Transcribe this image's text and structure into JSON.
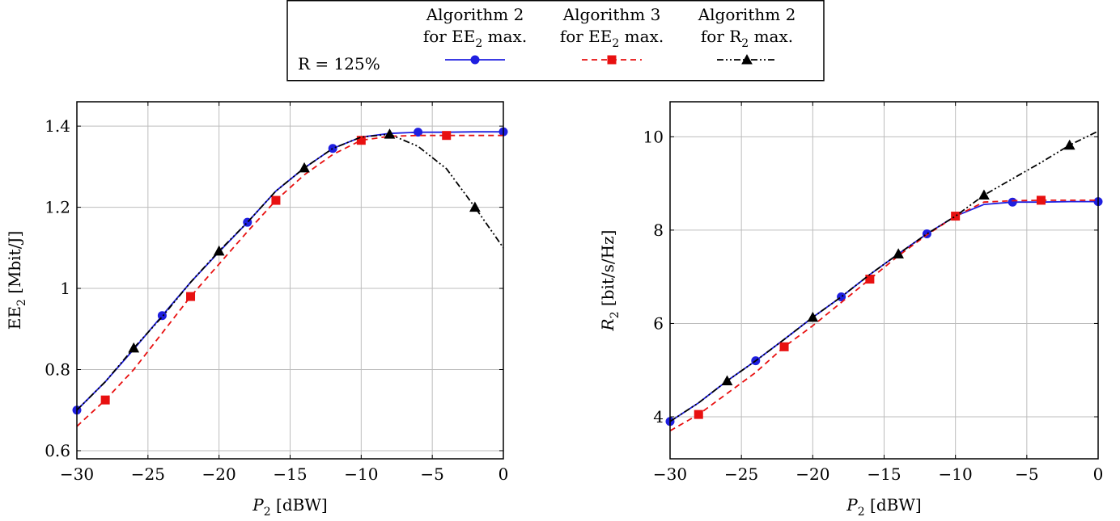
{
  "legend": {
    "annotation": "R = 125%",
    "entries": [
      {
        "line1": "Algorithm 2",
        "line2": "for EE",
        "sub": "2",
        "line2_tail": " max.",
        "series": "alg2_ee"
      },
      {
        "line1": "Algorithm 3",
        "line2": "for EE",
        "sub": "2",
        "line2_tail": " max.",
        "series": "alg3_ee"
      },
      {
        "line1": "Algorithm 2",
        "line2": "for R",
        "sub": "2",
        "line2_tail": " max.",
        "series": "alg2_r"
      }
    ]
  },
  "styles": {
    "alg2_ee": {
      "color": "#1f1fe0",
      "dash": "",
      "marker": "circle"
    },
    "alg3_ee": {
      "color": "#e81010",
      "dash": "7,5",
      "marker": "square"
    },
    "alg2_r": {
      "color": "#000000",
      "dash": "8,3,2,3,2,3",
      "marker": "triangle"
    }
  },
  "chart_data": [
    {
      "type": "line",
      "xlabel": "P",
      "xlabel_sub": "2",
      "xlabel_tail": " [dBW]",
      "ylabel": "EE",
      "ylabel_sub": "2",
      "ylabel_tail": " [Mbit/J]",
      "xlim": [
        -30,
        0
      ],
      "ylim": [
        0.58,
        1.46
      ],
      "xticks": [
        -30,
        -25,
        -20,
        -15,
        -10,
        -5,
        0
      ],
      "xtick_labels": [
        "−30",
        "−25",
        "−20",
        "−15",
        "−10",
        "−5",
        "0"
      ],
      "yticks": [
        0.6,
        0.8,
        1.0,
        1.2,
        1.4
      ],
      "ytick_labels": [
        "0.6",
        "0.8",
        "1",
        "1.2",
        "1.4"
      ],
      "grid": true,
      "x": [
        -30,
        -28,
        -26,
        -24,
        -22,
        -20,
        -18,
        -16,
        -14,
        -12,
        -10,
        -8,
        -6,
        -4,
        -2,
        0
      ],
      "series": [
        {
          "key": "alg2_ee",
          "values": [
            0.7,
            0.77,
            0.85,
            0.933,
            1.015,
            1.09,
            1.163,
            1.24,
            1.297,
            1.345,
            1.373,
            1.382,
            1.385,
            1.385,
            1.386,
            1.386
          ],
          "marker_x": [
            -30,
            -24,
            -18,
            -12,
            -6,
            0
          ]
        },
        {
          "key": "alg3_ee",
          "values": [
            0.66,
            0.725,
            0.8,
            0.89,
            0.98,
            1.06,
            1.14,
            1.217,
            1.28,
            1.33,
            1.365,
            1.375,
            1.377,
            1.377,
            1.377,
            1.377
          ],
          "marker_x": [
            -28,
            -22,
            -16,
            -10,
            -4
          ]
        },
        {
          "key": "alg2_r",
          "values": [
            0.7,
            0.77,
            0.853,
            0.93,
            1.015,
            1.092,
            1.163,
            1.24,
            1.297,
            1.345,
            1.373,
            1.38,
            1.35,
            1.295,
            1.2,
            1.1
          ],
          "marker_x": [
            -26,
            -20,
            -14,
            -8,
            -2
          ]
        }
      ]
    },
    {
      "type": "line",
      "xlabel": "P",
      "xlabel_sub": "2",
      "xlabel_tail": " [dBW]",
      "ylabel": "R",
      "ylabel_sub": "2",
      "ylabel_tail": " [bit/s/Hz]",
      "xlim": [
        -30,
        0
      ],
      "ylim": [
        3.1,
        10.75
      ],
      "xticks": [
        -30,
        -25,
        -20,
        -15,
        -10,
        -5,
        0
      ],
      "xtick_labels": [
        "−30",
        "−25",
        "−20",
        "−15",
        "−10",
        "−5",
        "0"
      ],
      "yticks": [
        4,
        6,
        8,
        10
      ],
      "ytick_labels": [
        "4",
        "6",
        "8",
        "10"
      ],
      "grid": true,
      "x": [
        -30,
        -28,
        -26,
        -24,
        -22,
        -20,
        -18,
        -16,
        -14,
        -12,
        -10,
        -8,
        -6,
        -4,
        -2,
        0
      ],
      "series": [
        {
          "key": "alg2_ee",
          "values": [
            3.9,
            4.3,
            4.77,
            5.2,
            5.66,
            6.13,
            6.57,
            7.05,
            7.49,
            7.92,
            8.3,
            8.55,
            8.6,
            8.6,
            8.61,
            8.61
          ],
          "marker_x": [
            -30,
            -24,
            -18,
            -12,
            -6,
            0
          ]
        },
        {
          "key": "alg3_ee",
          "values": [
            3.7,
            4.05,
            4.5,
            4.95,
            5.5,
            5.95,
            6.45,
            6.95,
            7.45,
            7.9,
            8.3,
            8.6,
            8.63,
            8.64,
            8.64,
            8.64
          ],
          "marker_x": [
            -28,
            -22,
            -16,
            -10,
            -4
          ]
        },
        {
          "key": "alg2_r",
          "values": [
            3.9,
            4.3,
            4.77,
            5.2,
            5.66,
            6.13,
            6.57,
            7.05,
            7.49,
            7.92,
            8.3,
            8.75,
            9.1,
            9.45,
            9.82,
            10.12
          ],
          "marker_x": [
            -26,
            -20,
            -14,
            -8,
            -2
          ]
        }
      ]
    }
  ]
}
